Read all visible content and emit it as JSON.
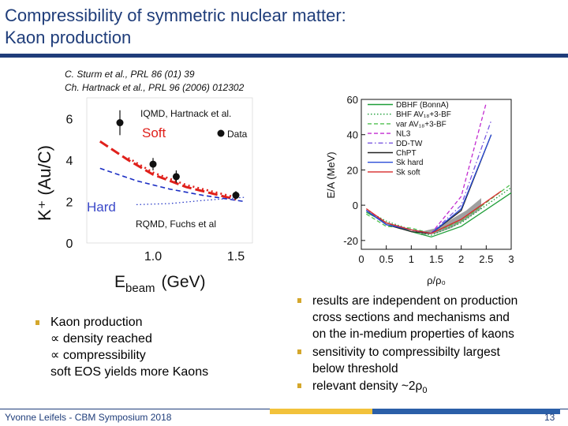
{
  "slide": {
    "title_line1": "Compressibility of symmetric nuclear matter:",
    "title_line2": "Kaon production",
    "ref1": "C. Sturm et al., PRL 86 (01) 39",
    "ref2": "Ch. Hartnack et al., PRL 96 (2006) 012302",
    "footer_author": "Yvonne Leifels - CBM Symposium 2018",
    "page_number": "13"
  },
  "bullets_left": {
    "main": "Kaon production",
    "sub1": "∝ density reached",
    "sub2": "∝ compressibility",
    "sub3": "soft EOS yields more Kaons"
  },
  "bullets_right": [
    {
      "line1": "results are independent on production",
      "line2": "cross sections and mechanisms and",
      "line3": "on the in-medium properties of kaons"
    },
    {
      "line1": "sensitivity to compressibilty largest",
      "line2": "below threshold"
    },
    {
      "line1": "relevant density ~2ρ",
      "sub": "0"
    }
  ],
  "chart_data": [
    {
      "type": "scatter",
      "title": "",
      "ylabel": "K⁺ (Au/C)",
      "xlabel_main": "E",
      "xlabel_sub": "beam",
      "xlabel_unit": "(GeV)",
      "xlim": [
        0.6,
        1.6
      ],
      "ylim": [
        0,
        7
      ],
      "x_ticks": [
        "1.0",
        "1.5"
      ],
      "y_ticks": [
        "0",
        "2",
        "4",
        "6"
      ],
      "annotations": {
        "top": "IQMD, Hartnack et al.",
        "soft": "Soft",
        "data": "Data",
        "hard": "Hard",
        "bottom": "RQMD, Fuchs et al"
      },
      "colors": {
        "soft": "#e0201b",
        "hard": "#1c2fc4",
        "hard_label": "#3b49c9"
      },
      "series": [
        {
          "name": "Data",
          "x": [
            0.8,
            1.0,
            1.14,
            1.5
          ],
          "y": [
            5.8,
            3.8,
            3.2,
            2.3
          ],
          "err": [
            0.6,
            0.3,
            0.3,
            0.2
          ]
        }
      ],
      "lines": {
        "soft_iqmd": {
          "x": [
            0.68,
            0.85,
            1.0,
            1.2,
            1.5
          ],
          "y": [
            4.9,
            4.0,
            3.3,
            2.7,
            2.1
          ]
        },
        "soft_rqmd": {
          "x": [
            0.85,
            1.0,
            1.2,
            1.5
          ],
          "y": [
            4.1,
            3.4,
            2.8,
            2.2
          ]
        },
        "hard_iqmd": {
          "x": [
            0.68,
            0.9,
            1.1,
            1.3,
            1.55
          ],
          "y": [
            3.6,
            3.0,
            2.6,
            2.3,
            2.0
          ]
        },
        "hard_rqmd": {
          "x": [
            0.9,
            1.1,
            1.3,
            1.55
          ],
          "y": [
            1.85,
            1.9,
            2.05,
            2.2
          ]
        }
      }
    },
    {
      "type": "line",
      "title": "",
      "xlabel": "ρ/ρ₀",
      "ylabel": "E/A (MeV)",
      "xlim": [
        0,
        3
      ],
      "ylim": [
        -25,
        60
      ],
      "x_ticks": [
        "0",
        "0.5",
        "1",
        "1.5",
        "2",
        "2.5",
        "3"
      ],
      "y_ticks": [
        "-20",
        "0",
        "20",
        "40",
        "60"
      ],
      "series": [
        {
          "name": "DBHF (BonnA)",
          "color": "#1e9e38",
          "dash": "solid",
          "x": [
            0.1,
            0.5,
            1.0,
            1.4,
            2.0,
            3.0
          ],
          "y": [
            -4,
            -10,
            -15,
            -18,
            -12,
            7
          ]
        },
        {
          "name": "BHF AV₁₈+3-BF",
          "color": "#1e9e38",
          "dash": "dot",
          "x": [
            0.1,
            0.5,
            1.0,
            1.4,
            2.0,
            3.0
          ],
          "y": [
            -3,
            -9,
            -14,
            -17,
            -10,
            10
          ]
        },
        {
          "name": "var AV₁₈+3-BF",
          "color": "#4fc04f",
          "dash": "dash",
          "x": [
            0.1,
            0.5,
            1.0,
            1.4,
            2.0,
            3.0
          ],
          "y": [
            -5,
            -12,
            -13,
            -16,
            -9,
            12
          ]
        },
        {
          "name": "NL3",
          "color": "#c22bd0",
          "dash": "dash",
          "x": [
            0.1,
            0.5,
            1.0,
            1.4,
            2.0,
            2.5
          ],
          "y": [
            -3,
            -10,
            -14,
            -16,
            5,
            58
          ]
        },
        {
          "name": "DD-TW",
          "color": "#7a58e0",
          "dash": "dashdot",
          "x": [
            0.1,
            0.5,
            1.0,
            1.4,
            2.0,
            2.6
          ],
          "y": [
            -3,
            -11,
            -14,
            -16,
            0,
            48
          ]
        },
        {
          "name": "ChPT",
          "color": "#222222",
          "dash": "solid",
          "x": [
            0.1,
            0.5,
            1.0,
            1.4,
            2.0,
            2.6
          ],
          "y": [
            -3,
            -11,
            -15,
            -16,
            -3,
            40
          ]
        },
        {
          "name": "Sk hard",
          "color": "#2a4cd8",
          "dash": "solid",
          "x": [
            0.1,
            0.5,
            1.0,
            1.4,
            2.0,
            2.6
          ],
          "y": [
            -3,
            -11,
            -14,
            -16,
            -2,
            40
          ]
        },
        {
          "name": "Sk soft",
          "color": "#d82a2a",
          "dash": "solid",
          "x": [
            0.1,
            0.5,
            1.0,
            1.4,
            2.0,
            2.8
          ],
          "y": [
            -2,
            -10,
            -14,
            -16,
            -8,
            8
          ]
        }
      ],
      "band": {
        "color": "#8f8f8f",
        "x": [
          1.2,
          1.5,
          1.8,
          2.1,
          2.4
        ],
        "low": [
          -17,
          -16,
          -13,
          -8,
          -2
        ],
        "high": [
          -15,
          -13,
          -8,
          -3,
          4
        ]
      }
    }
  ]
}
